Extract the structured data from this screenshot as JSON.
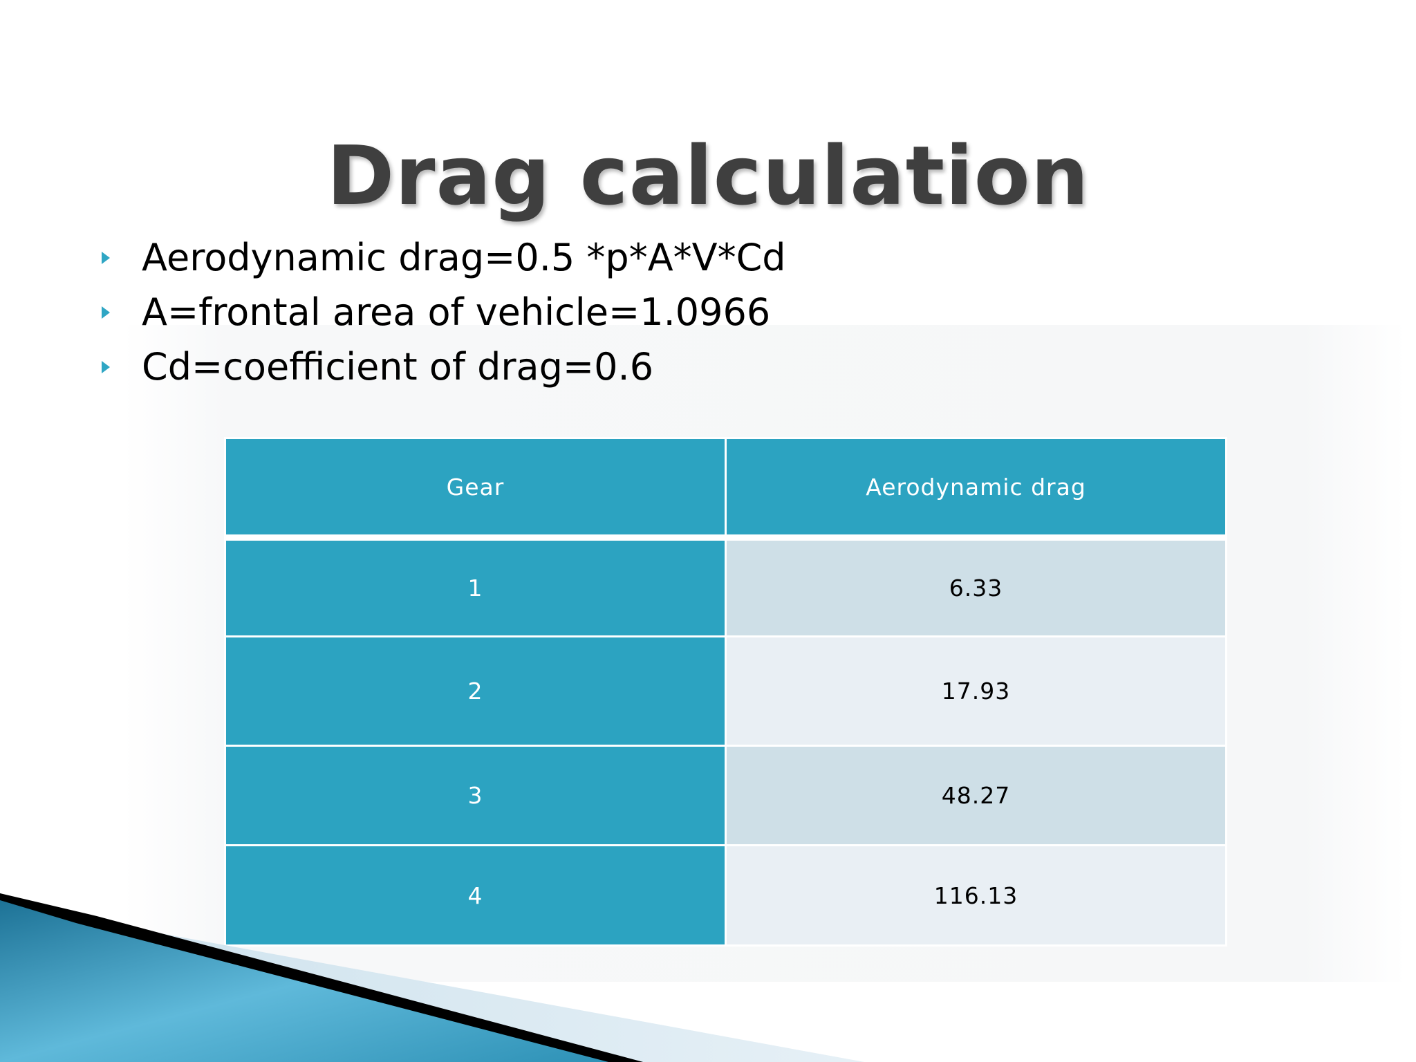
{
  "slide": {
    "title": "Drag calculation",
    "bullets": [
      "Aerodynamic drag=0.5 *p*A*V*Cd",
      "A=frontal area of vehicle=1.0966",
      "Cd=coefficient of drag=0.6"
    ]
  },
  "table": {
    "headers": [
      "Gear",
      "Aerodynamic drag"
    ],
    "rows": [
      {
        "gear": "1",
        "drag": "6.33"
      },
      {
        "gear": "2",
        "drag": "17.93"
      },
      {
        "gear": "3",
        "drag": "48.27"
      },
      {
        "gear": "4",
        "drag": "116.13"
      }
    ]
  },
  "colors": {
    "accent": "#2ca3c1",
    "row_odd": "#cedfe7",
    "row_even": "#e9eff4",
    "title_text": "#3f3f3f",
    "bullet_marker": "#2fa6c4"
  },
  "icons": {
    "bullet": "triangle-right-icon"
  }
}
